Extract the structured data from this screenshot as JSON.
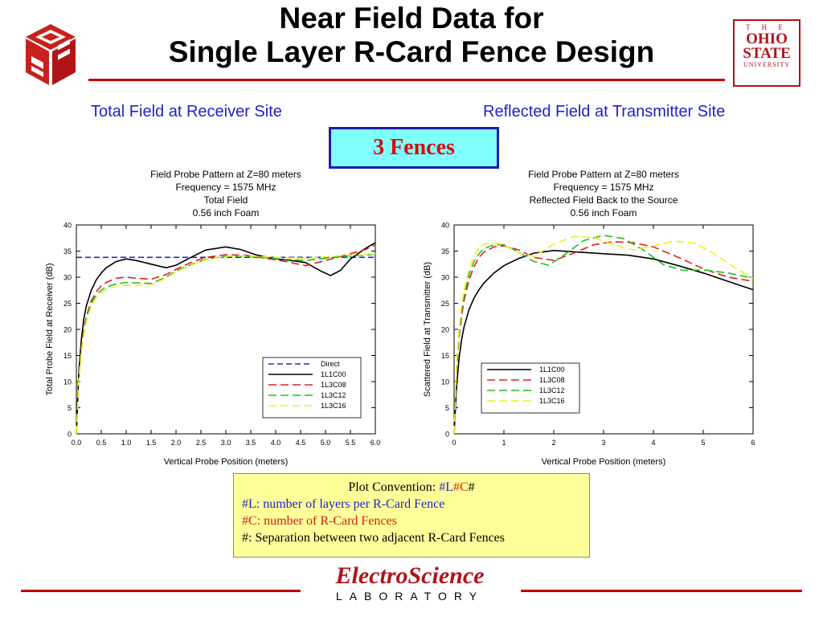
{
  "slide": {
    "title_line1": "Near Field Data for",
    "title_line2": "Single Layer R-Card Fence Design",
    "left_heading": "Total Field at Receiver Site",
    "right_heading": "Reflected Field at Transmitter Site",
    "fences_label": "3 Fences",
    "colors": {
      "accent_red": "#c00000",
      "heading_blue": "#1f1fcc",
      "box_cyan": "#80ffff",
      "box_yellow": "#ffff99"
    }
  },
  "logos": {
    "osu_line1": "T H E",
    "osu_line2": "OHIO",
    "osu_line3": "STATE",
    "osu_line4": "UNIVERSITY",
    "esl_main": "ElectroScience",
    "esl_sub": "LABORATORY",
    "cube_letters": "C S E"
  },
  "convention": {
    "title": "Plot Convention: ",
    "code_hash1": "#",
    "code_L": "L",
    "code_hash2": "#",
    "code_C": "C",
    "code_hash3": "#",
    "line_L": "#L: number of layers per R-Card Fence",
    "line_C": "#C: number of R-Card Fences",
    "line_sep": "#: Separation between two adjacent R-Card Fences"
  },
  "chart_data": [
    {
      "type": "line",
      "title_lines": [
        "Field Probe Pattern at Z=80 meters",
        "Frequency = 1575 MHz",
        "Total Field",
        "0.56 inch Foam"
      ],
      "xlabel": "Vertical Probe Position (meters)",
      "ylabel": "Total Probe Field at Receiver (dB)",
      "xlim": [
        0,
        6
      ],
      "ylim": [
        0,
        40
      ],
      "xticks": [
        0,
        0.5,
        1,
        1.5,
        2,
        2.5,
        3,
        3.5,
        4,
        4.5,
        5,
        5.5,
        6
      ],
      "xtick_labels": [
        "0.0",
        "0.5",
        "1.0",
        "1.5",
        "2.0",
        "2.5",
        "3.0",
        "3.5",
        "4.0",
        "4.5",
        "5.0",
        "5.5",
        "6.0"
      ],
      "yticks": [
        0,
        5,
        10,
        15,
        20,
        25,
        30,
        35,
        40
      ],
      "ytick_labels": [
        "0",
        "5",
        "10",
        "15",
        "20",
        "25",
        "30",
        "35",
        "40"
      ],
      "grid": false,
      "legend_position": "lower-right",
      "series": [
        {
          "name": "Direct",
          "color": "#1f2fb0",
          "dash": "7,4",
          "x": [
            0,
            6
          ],
          "y": [
            33.8,
            33.8
          ]
        },
        {
          "name": "1L1C00",
          "color": "#000000",
          "dash": "",
          "x": [
            0,
            0.05,
            0.1,
            0.15,
            0.2,
            0.3,
            0.4,
            0.5,
            0.6,
            0.8,
            1.0,
            1.2,
            1.5,
            1.8,
            2.0,
            2.3,
            2.6,
            3.0,
            3.3,
            3.6,
            4.0,
            4.3,
            4.6,
            4.9,
            5.1,
            5.3,
            5.5,
            5.8,
            6.0
          ],
          "y": [
            0,
            12,
            18,
            22,
            24.5,
            27.5,
            29.5,
            30.8,
            31.8,
            33,
            33.5,
            33.2,
            32.5,
            31.8,
            32.3,
            33.8,
            35.2,
            35.8,
            35.3,
            34.3,
            33.5,
            33.2,
            32.8,
            31.2,
            30.3,
            31.3,
            33.5,
            35.5,
            36.6
          ]
        },
        {
          "name": "1L3C08",
          "color": "#e02020",
          "dash": "10,5",
          "x": [
            0,
            0.05,
            0.1,
            0.15,
            0.2,
            0.3,
            0.4,
            0.5,
            0.6,
            0.8,
            1.0,
            1.2,
            1.5,
            1.8,
            2.0,
            2.3,
            2.6,
            3.0,
            3.4,
            3.8,
            4.2,
            4.6,
            5.0,
            5.4,
            5.8,
            6.0
          ],
          "y": [
            0,
            11,
            16.5,
            20,
            22.5,
            25.5,
            27.2,
            28.3,
            29,
            29.8,
            30,
            29.8,
            29.6,
            30.5,
            31.5,
            32.8,
            33.8,
            34.3,
            34.2,
            33.6,
            33.0,
            32.2,
            33.2,
            34.2,
            35.3,
            36.2
          ]
        },
        {
          "name": "1L3C12",
          "color": "#20c020",
          "dash": "10,5",
          "x": [
            0,
            0.05,
            0.1,
            0.15,
            0.2,
            0.3,
            0.4,
            0.5,
            0.6,
            0.8,
            1.0,
            1.2,
            1.5,
            1.8,
            2.0,
            2.3,
            2.6,
            3.0,
            3.4,
            3.8,
            4.2,
            4.6,
            5.0,
            5.4,
            5.8,
            6.0
          ],
          "y": [
            0,
            10.5,
            16,
            19.5,
            22,
            25,
            26.6,
            27.5,
            28.1,
            28.7,
            29,
            28.9,
            28.8,
            30,
            31.2,
            32.4,
            33.4,
            34,
            34,
            33.7,
            33.4,
            33.2,
            33.6,
            34,
            34.2,
            34.4
          ]
        },
        {
          "name": "1L3C16",
          "color": "#f0f020",
          "dash": "10,5",
          "x": [
            0,
            0.05,
            0.1,
            0.15,
            0.2,
            0.3,
            0.4,
            0.5,
            0.6,
            0.8,
            1.0,
            1.2,
            1.5,
            1.8,
            2.0,
            2.3,
            2.6,
            3.0,
            3.4,
            3.8,
            4.2,
            4.6,
            5.0,
            5.4,
            5.8,
            6.0
          ],
          "y": [
            0,
            10,
            15.5,
            19,
            21.5,
            24.5,
            26,
            27,
            27.6,
            28.2,
            28.4,
            28.4,
            28.6,
            29.8,
            31,
            32.3,
            33.3,
            34,
            34.1,
            33.9,
            33.7,
            33.6,
            33.9,
            34.2,
            34.3,
            34.5
          ]
        }
      ]
    },
    {
      "type": "line",
      "title_lines": [
        "Field Probe Pattern at Z=80 meters",
        "Frequency = 1575 MHz",
        "Reflected Field Back to the Source",
        "0.56 inch Foam"
      ],
      "xlabel": "Vertical Probe Position (meters)",
      "ylabel": "Scattered Field at Transmitter (dB)",
      "xlim": [
        0,
        6
      ],
      "ylim": [
        0,
        40
      ],
      "xticks": [
        0,
        1,
        2,
        3,
        4,
        5,
        6
      ],
      "xtick_labels": [
        "0",
        "1",
        "2",
        "3",
        "4",
        "5",
        "6"
      ],
      "yticks": [
        0,
        5,
        10,
        15,
        20,
        25,
        30,
        35,
        40
      ],
      "ytick_labels": [
        "0",
        "5",
        "10",
        "15",
        "20",
        "25",
        "30",
        "35",
        "40"
      ],
      "grid": false,
      "legend_position": "lower-left",
      "series": [
        {
          "name": "1L1C00",
          "color": "#000000",
          "dash": "",
          "x": [
            0,
            0.05,
            0.1,
            0.15,
            0.2,
            0.3,
            0.4,
            0.5,
            0.6,
            0.8,
            1.0,
            1.3,
            1.6,
            2.0,
            2.5,
            3.0,
            3.5,
            4.0,
            4.5,
            5.0,
            5.5,
            6.0
          ],
          "y": [
            0,
            9,
            14.5,
            18,
            20.5,
            23.8,
            26,
            27.6,
            28.9,
            30.8,
            32.2,
            33.6,
            34.6,
            35.1,
            34.8,
            34.5,
            34.2,
            33.5,
            32.2,
            30.8,
            29.2,
            27.6
          ]
        },
        {
          "name": "1L3C08",
          "color": "#e02020",
          "dash": "10,5",
          "x": [
            0,
            0.05,
            0.1,
            0.15,
            0.2,
            0.3,
            0.4,
            0.5,
            0.6,
            0.8,
            1.0,
            1.3,
            1.6,
            2.0,
            2.4,
            2.8,
            3.2,
            3.6,
            4.0,
            4.5,
            5.0,
            5.5,
            6.0
          ],
          "y": [
            0,
            12,
            18.5,
            22.5,
            25.5,
            29.5,
            32,
            33.8,
            34.8,
            35.8,
            36,
            35.2,
            33.8,
            33.2,
            34.6,
            36.2,
            36.8,
            36.6,
            35.8,
            33.8,
            31.6,
            30,
            29.2
          ]
        },
        {
          "name": "1L3C12",
          "color": "#20c020",
          "dash": "10,5",
          "x": [
            0,
            0.05,
            0.1,
            0.15,
            0.2,
            0.3,
            0.4,
            0.5,
            0.6,
            0.8,
            1.0,
            1.3,
            1.6,
            1.9,
            2.2,
            2.6,
            3.0,
            3.4,
            3.8,
            4.2,
            4.6,
            5.0,
            5.5,
            6.0
          ],
          "y": [
            0,
            13,
            19.5,
            23.5,
            26.5,
            30.5,
            33,
            34.5,
            35.5,
            36.2,
            36.2,
            34.8,
            33,
            32.3,
            34.2,
            37,
            38,
            37.4,
            35.2,
            32.4,
            31.3,
            31.4,
            30.8,
            29.8
          ]
        },
        {
          "name": "1L3C16",
          "color": "#f0f020",
          "dash": "10,5",
          "x": [
            0,
            0.05,
            0.1,
            0.15,
            0.2,
            0.3,
            0.4,
            0.5,
            0.6,
            0.8,
            1.0,
            1.3,
            1.6,
            2.0,
            2.4,
            2.8,
            3.2,
            3.6,
            4.0,
            4.4,
            4.8,
            5.2,
            5.6,
            6.0
          ],
          "y": [
            0,
            13.5,
            20,
            24.5,
            27.5,
            31.5,
            34,
            35.6,
            36.3,
            36.6,
            36.2,
            34.6,
            34,
            36.3,
            37.8,
            37.6,
            36.2,
            35.2,
            36,
            36.9,
            36.6,
            34.6,
            32,
            29.8
          ]
        }
      ]
    }
  ]
}
